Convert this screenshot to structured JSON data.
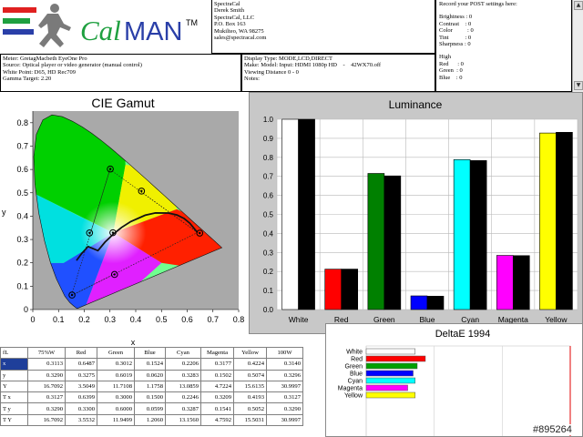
{
  "header": {
    "logo_text_cal": "Cal",
    "logo_text_man": "MAN",
    "logo_tm": "TM",
    "contact_lines": [
      "SpectraCal",
      "Derek Smith",
      "SpectraCal, LLC",
      "P.O. Box 163",
      "Mukilteo, WA 98275",
      "sales@spectracal.com"
    ],
    "post_title": "Record your POST settings here:",
    "post_settings_a": [
      "Brightness : 0",
      "Contrast    : 0",
      "Color          : 0",
      "Tint           : 0",
      "Sharpness : 0"
    ],
    "post_settings_b": [
      "High",
      "Red      : 0",
      "Green  : 0",
      "Blue    : 0"
    ],
    "meter_lines": [
      "Meter: GretagMacbeth EyeOne Pro",
      "Source: Optical player or video generator (manual control)",
      "White Point: D65, HD Rec709",
      "Gamma Target: 2.20"
    ],
    "display_lines": [
      "Display Type: MODE,LCD,DIRECT",
      "Make: Model: Input: HDMI 1080p HD    -    42WX70.off",
      "Viewing Distance 0 - 0",
      "Notes:"
    ],
    "scroll_up": "▲",
    "scroll_down": "▼"
  },
  "cie": {
    "title": "CIE Gamut",
    "xlabel": "x",
    "ylabel": "y",
    "x_ticks": [
      "0",
      "0.1",
      "0.2",
      "0.3",
      "0.4",
      "0.5",
      "0.6",
      "0.7",
      "0.8"
    ],
    "y_ticks": [
      "0",
      "0.1",
      "0.2",
      "0.3",
      "0.4",
      "0.5",
      "0.6",
      "0.7",
      "0.8"
    ]
  },
  "chart_data": [
    {
      "type": "scatter",
      "title": "CIE Gamut",
      "xlabel": "x",
      "ylabel": "y",
      "xlim": [
        0,
        0.8
      ],
      "ylim": [
        0,
        0.85
      ],
      "spectral_locus": [
        [
          0.1741,
          0.005
        ],
        [
          0.1738,
          0.0049
        ],
        [
          0.1733,
          0.0048
        ],
        [
          0.1726,
          0.0048
        ],
        [
          0.1714,
          0.0051
        ],
        [
          0.1689,
          0.0069
        ],
        [
          0.1644,
          0.0109
        ],
        [
          0.1566,
          0.0177
        ],
        [
          0.144,
          0.0297
        ],
        [
          0.1241,
          0.0578
        ],
        [
          0.0913,
          0.1327
        ],
        [
          0.0687,
          0.2007
        ],
        [
          0.0454,
          0.295
        ],
        [
          0.0235,
          0.4127
        ],
        [
          0.0082,
          0.5384
        ],
        [
          0.0039,
          0.6548
        ],
        [
          0.0139,
          0.7502
        ],
        [
          0.0389,
          0.812
        ],
        [
          0.0743,
          0.8338
        ],
        [
          0.1142,
          0.8262
        ],
        [
          0.1547,
          0.8059
        ],
        [
          0.1929,
          0.7816
        ],
        [
          0.2296,
          0.7543
        ],
        [
          0.2658,
          0.7243
        ],
        [
          0.3016,
          0.6923
        ],
        [
          0.3373,
          0.6589
        ],
        [
          0.3731,
          0.6245
        ],
        [
          0.4087,
          0.5896
        ],
        [
          0.4441,
          0.5547
        ],
        [
          0.4788,
          0.5202
        ],
        [
          0.5125,
          0.4866
        ],
        [
          0.5448,
          0.4544
        ],
        [
          0.5752,
          0.4242
        ],
        [
          0.6029,
          0.3965
        ],
        [
          0.627,
          0.3725
        ],
        [
          0.6482,
          0.3514
        ],
        [
          0.6658,
          0.334
        ],
        [
          0.6801,
          0.3197
        ],
        [
          0.6915,
          0.3083
        ],
        [
          0.7006,
          0.2993
        ],
        [
          0.7079,
          0.292
        ],
        [
          0.714,
          0.2859
        ],
        [
          0.719,
          0.2809
        ],
        [
          0.723,
          0.277
        ],
        [
          0.726,
          0.274
        ],
        [
          0.7283,
          0.2717
        ],
        [
          0.73,
          0.27
        ],
        [
          0.7347,
          0.2653
        ]
      ],
      "target_gamut": [
        [
          0.64,
          0.33
        ],
        [
          0.3,
          0.6
        ],
        [
          0.15,
          0.06
        ]
      ],
      "target_secondaries": [
        [
          0.2246,
          0.3287
        ],
        [
          0.4193,
          0.5052
        ],
        [
          0.3209,
          0.1541
        ]
      ],
      "white_target": [
        0.3127,
        0.329
      ],
      "measured": [
        {
          "name": "White",
          "x": 0.3113,
          "y": 0.329
        },
        {
          "name": "Red",
          "x": 0.6487,
          "y": 0.3275
        },
        {
          "name": "Green",
          "x": 0.3012,
          "y": 0.6019
        },
        {
          "name": "Blue",
          "x": 0.1524,
          "y": 0.062
        },
        {
          "name": "Cyan",
          "x": 0.2206,
          "y": 0.3283
        },
        {
          "name": "Magenta",
          "x": 0.3177,
          "y": 0.1502
        },
        {
          "name": "Yellow",
          "x": 0.4224,
          "y": 0.5074
        }
      ],
      "planckian_locus": [
        [
          0.17,
          0.21
        ],
        [
          0.19,
          0.24
        ],
        [
          0.215,
          0.27
        ],
        [
          0.253,
          0.2522
        ],
        [
          0.2805,
          0.2884
        ],
        [
          0.3135,
          0.3236
        ],
        [
          0.3451,
          0.3516
        ],
        [
          0.3805,
          0.3768
        ],
        [
          0.4369,
          0.4041
        ],
        [
          0.4764,
          0.4137
        ],
        [
          0.5267,
          0.4133
        ],
        [
          0.5601,
          0.4052
        ],
        [
          0.588,
          0.39
        ],
        [
          0.61,
          0.37
        ],
        [
          0.64,
          0.33
        ]
      ]
    },
    {
      "type": "bar",
      "title": "Luminance",
      "categories": [
        "White",
        "Red",
        "Green",
        "Blue",
        "Cyan",
        "Magenta",
        "Yellow"
      ],
      "ylim": [
        0,
        1.0
      ],
      "y_ticks": [
        "0.0",
        "0.1",
        "0.2",
        "0.3",
        "0.4",
        "0.5",
        "0.6",
        "0.7",
        "0.8",
        "0.9",
        "1.0"
      ],
      "measured_colors": [
        "#ffffff",
        "#ff0000",
        "#008000",
        "#0000ff",
        "#00ffff",
        "#ff00ff",
        "#ffff00"
      ],
      "target_color": "#000000",
      "series": [
        {
          "values": [
            1.0,
            0.2123,
            0.7153,
            0.0718,
            0.7879,
            0.2845,
            0.9277
          ]
        },
        {
          "values": [
            1.0,
            0.2126,
            0.7024,
            0.0703,
            0.783,
            0.2834,
            0.9315
          ]
        }
      ]
    },
    {
      "type": "bar",
      "orientation": "horizontal",
      "title": "DeltaE 1994",
      "categories": [
        "White",
        "Red",
        "Green",
        "Blue",
        "Cyan",
        "Magenta",
        "Yellow"
      ],
      "colors": [
        "#ffffff",
        "#ff0000",
        "#00a000",
        "#0000ff",
        "#00ffff",
        "#ff00ff",
        "#ffff00"
      ],
      "values": [
        0.72,
        0.87,
        0.75,
        0.69,
        0.72,
        0.61,
        0.72
      ],
      "xlim": [
        0,
        3
      ],
      "x_ticks": [
        "0",
        "1",
        "2",
        "3"
      ],
      "threshold": 3
    }
  ],
  "table": {
    "headers": [
      "fL",
      "75%W",
      "Red",
      "Green",
      "Blue",
      "Cyan",
      "Magenta",
      "Yellow",
      "100W"
    ],
    "rows": [
      {
        "label": "x",
        "selected": true,
        "cells": [
          "0.3113",
          "0.6487",
          "0.3012",
          "0.1524",
          "0.2206",
          "0.3177",
          "0.4224",
          "0.3140"
        ]
      },
      {
        "label": "y",
        "selected": false,
        "cells": [
          "0.3290",
          "0.3275",
          "0.6019",
          "0.0620",
          "0.3283",
          "0.1502",
          "0.5074",
          "0.3296"
        ]
      },
      {
        "label": "Y",
        "selected": false,
        "cells": [
          "16.7092",
          "3.5049",
          "11.7108",
          "1.1758",
          "13.0859",
          "4.7224",
          "15.6135",
          "30.9997"
        ]
      },
      {
        "label": "T x",
        "selected": false,
        "cells": [
          "0.3127",
          "0.6399",
          "0.3000",
          "0.1500",
          "0.2246",
          "0.3209",
          "0.4193",
          "0.3127"
        ]
      },
      {
        "label": "T y",
        "selected": false,
        "cells": [
          "0.3290",
          "0.3300",
          "0.6000",
          "0.0599",
          "0.3287",
          "0.1541",
          "0.5052",
          "0.3290"
        ]
      },
      {
        "label": "T Y",
        "selected": false,
        "cells": [
          "16.7092",
          "3.5532",
          "11.9499",
          "1.2060",
          "13.1560",
          "4.7592",
          "15.5031",
          "30.9997"
        ]
      }
    ]
  },
  "watermark": "#895264"
}
